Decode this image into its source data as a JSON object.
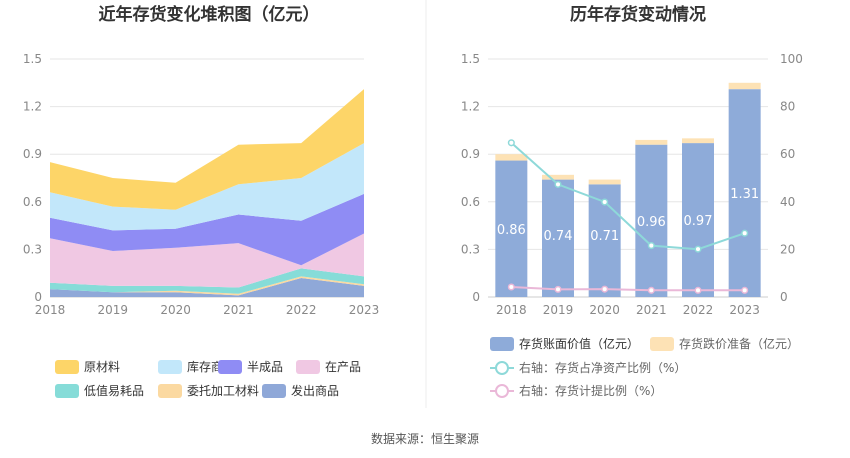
{
  "source_text": "数据来源：恒生聚源",
  "chart_data": [
    {
      "type": "area",
      "stacked": true,
      "title": "近年存货变化堆积图（亿元）",
      "categories": [
        "2018",
        "2019",
        "2020",
        "2021",
        "2022",
        "2023"
      ],
      "yticks": [
        "0",
        "0.3",
        "0.6",
        "0.9",
        "1.2",
        "1.5"
      ],
      "ylim": [
        0,
        1.5
      ],
      "grid": true,
      "legend_position": "bottom",
      "series": [
        {
          "name": "发出商品",
          "color": "#8FA8D8",
          "values": [
            0.05,
            0.03,
            0.03,
            0.01,
            0.12,
            0.07
          ]
        },
        {
          "name": "委托加工材料",
          "color": "#FBD9A1",
          "values": [
            0.0,
            0.0,
            0.01,
            0.01,
            0.01,
            0.01
          ]
        },
        {
          "name": "低值易耗品",
          "color": "#86DCD8",
          "values": [
            0.04,
            0.04,
            0.03,
            0.04,
            0.05,
            0.05
          ]
        },
        {
          "name": "在产品",
          "color": "#F0C8E3",
          "values": [
            0.28,
            0.22,
            0.24,
            0.28,
            0.02,
            0.27
          ]
        },
        {
          "name": "半成品",
          "color": "#8F8CF4",
          "values": [
            0.13,
            0.13,
            0.12,
            0.18,
            0.28,
            0.25
          ]
        },
        {
          "name": "库存商品",
          "color": "#C2E7FA",
          "values": [
            0.16,
            0.15,
            0.12,
            0.19,
            0.27,
            0.32
          ]
        },
        {
          "name": "原材料",
          "color": "#FDD568",
          "values": [
            0.19,
            0.18,
            0.17,
            0.25,
            0.22,
            0.34
          ]
        }
      ],
      "legend_order": [
        "原材料",
        "库存商品",
        "半成品",
        "在产品",
        "低值易耗品",
        "委托加工材料",
        "发出商品"
      ]
    },
    {
      "type": "bar",
      "title": "历年存货变动情况",
      "categories": [
        "2018",
        "2019",
        "2020",
        "2021",
        "2022",
        "2023"
      ],
      "yticks_left": [
        "0",
        "0.3",
        "0.6",
        "0.9",
        "1.2",
        "1.5"
      ],
      "ylim_left": [
        0,
        1.5
      ],
      "yticks_right": [
        "0",
        "20",
        "40",
        "60",
        "80",
        "100"
      ],
      "ylim_right": [
        0,
        100
      ],
      "grid": true,
      "legend_position": "bottom",
      "series": [
        {
          "name": "存货账面价值（亿元）",
          "kind": "bar",
          "axis": "left",
          "color": "#8EABD9",
          "values": [
            0.86,
            0.74,
            0.71,
            0.96,
            0.97,
            1.31
          ],
          "labels": [
            "0.86",
            "0.74",
            "0.71",
            "0.96",
            "0.97",
            "1.31"
          ]
        },
        {
          "name": "存货跌价准备（亿元）",
          "kind": "bar-stacked",
          "axis": "left",
          "color": "#FDE2B5",
          "values": [
            0.04,
            0.03,
            0.03,
            0.03,
            0.03,
            0.04
          ]
        },
        {
          "name": "右轴：存货占净资产比例（%）",
          "kind": "line",
          "axis": "right",
          "color": "#8ED9D9",
          "values": [
            64.8,
            47.3,
            39.9,
            21.6,
            20.1,
            26.8
          ]
        },
        {
          "name": "右轴：存货计提比例（%）",
          "kind": "line",
          "axis": "right",
          "color": "#EAB8D8",
          "values": [
            4.2,
            3.2,
            3.3,
            2.8,
            2.8,
            2.8
          ]
        }
      ]
    }
  ]
}
